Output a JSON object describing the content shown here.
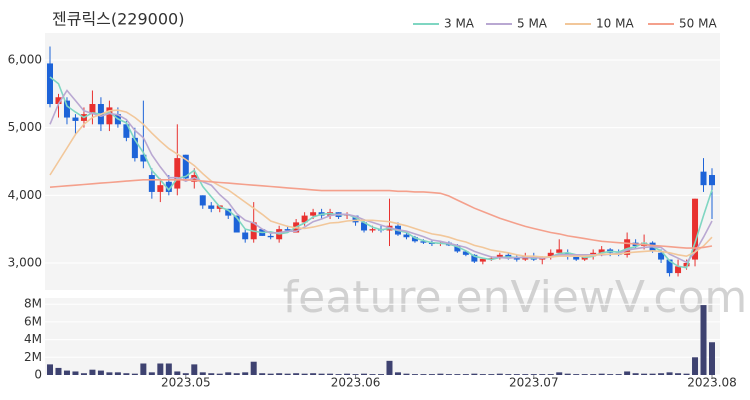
{
  "chart_data": {
    "type": "candlestick",
    "title": "젠큐릭스(229000)",
    "watermark": "feature.enViewV.com",
    "categories": [
      null,
      null,
      null,
      null,
      null,
      null,
      null,
      null,
      null,
      null,
      null,
      null,
      null,
      null,
      null,
      null,
      "2023.05",
      null,
      null,
      null,
      null,
      null,
      null,
      null,
      null,
      null,
      null,
      null,
      null,
      null,
      null,
      null,
      null,
      null,
      null,
      null,
      "2023.06",
      null,
      null,
      null,
      null,
      null,
      null,
      null,
      null,
      null,
      null,
      null,
      null,
      null,
      null,
      null,
      null,
      null,
      null,
      null,
      null,
      "2023.07",
      null,
      null,
      null,
      null,
      null,
      null,
      null,
      null,
      null,
      null,
      null,
      null,
      null,
      null,
      null,
      null,
      null,
      null,
      null,
      null,
      "2023.08"
    ],
    "open": [
      5950,
      5350,
      5400,
      5150,
      5100,
      5200,
      5350,
      5050,
      5200,
      5050,
      4850,
      4600,
      4300,
      4050,
      4200,
      4100,
      4600,
      4200,
      4000,
      3850,
      3800,
      3800,
      3700,
      3450,
      3350,
      3500,
      3400,
      3350,
      3500,
      3450,
      3600,
      3700,
      3750,
      3700,
      3750,
      3700,
      3700,
      3600,
      3480,
      3500,
      3480,
      3550,
      3420,
      3380,
      3320,
      3300,
      3280,
      3300,
      3260,
      3170,
      3120,
      3020,
      3060,
      3070,
      3120,
      3080,
      3050,
      3100,
      3050,
      3080,
      3150,
      3150,
      3100,
      3050,
      3100,
      3150,
      3200,
      3150,
      3120,
      3300,
      3250,
      3300,
      3150,
      3050,
      2850,
      2950,
      3050,
      4350,
      4300
    ],
    "high": [
      6200,
      5500,
      5450,
      5200,
      5300,
      5550,
      5450,
      5400,
      5300,
      5100,
      5000,
      5400,
      4400,
      4250,
      4300,
      5050,
      4600,
      4400,
      4000,
      3900,
      3850,
      3800,
      3700,
      3500,
      3900,
      3500,
      3450,
      3550,
      3550,
      3650,
      3750,
      3800,
      3800,
      3800,
      3750,
      3750,
      3700,
      3650,
      3550,
      3550,
      3950,
      3600,
      3450,
      3400,
      3350,
      3330,
      3330,
      3320,
      3280,
      3180,
      3130,
      3080,
      3100,
      3150,
      3150,
      3120,
      3150,
      3150,
      3100,
      3200,
      3350,
      3200,
      3120,
      3120,
      3200,
      3250,
      3220,
      3200,
      3450,
      3350,
      3420,
      3320,
      3200,
      3050,
      3050,
      3050,
      3950,
      4550,
      4400
    ],
    "low": [
      5300,
      5150,
      5050,
      4900,
      5000,
      5050,
      4950,
      4950,
      5000,
      4800,
      4500,
      4400,
      3950,
      3900,
      4000,
      4000,
      4200,
      4100,
      3800,
      3750,
      3750,
      3650,
      3450,
      3300,
      3300,
      3400,
      3350,
      3300,
      3450,
      3450,
      3550,
      3650,
      3650,
      3650,
      3650,
      3650,
      3550,
      3450,
      3450,
      3450,
      3250,
      3400,
      3350,
      3300,
      3280,
      3250,
      3250,
      3250,
      3150,
      3100,
      3000,
      2980,
      3030,
      3050,
      3050,
      3020,
      3030,
      3030,
      2980,
      3050,
      3100,
      3050,
      3030,
      3030,
      3050,
      3100,
      3100,
      3100,
      3080,
      3200,
      3200,
      3150,
      3000,
      2800,
      2800,
      2900,
      2950,
      4050,
      3650
    ],
    "close": [
      5350,
      5450,
      5150,
      5100,
      5200,
      5350,
      5050,
      5300,
      5050,
      4850,
      4550,
      4500,
      4050,
      4150,
      4050,
      4550,
      4250,
      4300,
      3850,
      3800,
      3850,
      3700,
      3450,
      3350,
      3600,
      3400,
      3380,
      3500,
      3480,
      3600,
      3700,
      3750,
      3700,
      3750,
      3680,
      3720,
      3600,
      3480,
      3500,
      3480,
      3550,
      3420,
      3380,
      3320,
      3300,
      3280,
      3300,
      3260,
      3170,
      3120,
      3020,
      3060,
      3070,
      3120,
      3080,
      3050,
      3100,
      3050,
      3080,
      3150,
      3200,
      3100,
      3050,
      3100,
      3150,
      3200,
      3150,
      3120,
      3350,
      3250,
      3300,
      3180,
      3050,
      2850,
      2950,
      3000,
      3950,
      4150,
      4150
    ],
    "up_color": "#e8312f",
    "down_color": "#1d63d8",
    "series": [
      {
        "name": "3 MA",
        "color": "#7fd6c2",
        "values": [
          5750,
          5650,
          5320,
          5230,
          5150,
          5220,
          5200,
          5230,
          5130,
          5070,
          4820,
          4630,
          4370,
          4230,
          4080,
          4250,
          4280,
          4370,
          4130,
          3980,
          3830,
          3780,
          3670,
          3500,
          3470,
          3450,
          3460,
          3430,
          3450,
          3530,
          3590,
          3680,
          3720,
          3730,
          3710,
          3720,
          3670,
          3600,
          3530,
          3490,
          3510,
          3480,
          3450,
          3370,
          3330,
          3300,
          3290,
          3280,
          3240,
          3180,
          3100,
          3070,
          3050,
          3080,
          3090,
          3080,
          3080,
          3070,
          3080,
          3090,
          3140,
          3150,
          3120,
          3080,
          3100,
          3150,
          3170,
          3160,
          3210,
          3240,
          3300,
          3240,
          3180,
          3030,
          2950,
          2930,
          3300,
          3700,
          4080
        ]
      },
      {
        "name": "5 MA",
        "color": "#b9a8d2",
        "values": [
          5050,
          5350,
          5550,
          5400,
          5250,
          5210,
          5170,
          5210,
          5190,
          5120,
          4960,
          4850,
          4600,
          4420,
          4260,
          4260,
          4210,
          4260,
          4200,
          4150,
          4010,
          3900,
          3730,
          3630,
          3590,
          3500,
          3440,
          3450,
          3470,
          3470,
          3530,
          3610,
          3650,
          3700,
          3720,
          3720,
          3690,
          3640,
          3600,
          3560,
          3520,
          3490,
          3470,
          3430,
          3390,
          3340,
          3320,
          3290,
          3260,
          3230,
          3170,
          3130,
          3090,
          3080,
          3070,
          3080,
          3080,
          3080,
          3070,
          3090,
          3120,
          3120,
          3120,
          3120,
          3120,
          3120,
          3130,
          3140,
          3190,
          3210,
          3230,
          3240,
          3230,
          3130,
          3070,
          3010,
          3160,
          3380,
          3620
        ]
      },
      {
        "name": "10 MA",
        "color": "#f2c79a",
        "values": [
          4300,
          4500,
          4700,
          4900,
          5050,
          5150,
          5200,
          5250,
          5260,
          5230,
          5150,
          5050,
          4920,
          4800,
          4690,
          4610,
          4530,
          4440,
          4320,
          4210,
          4140,
          4080,
          3990,
          3900,
          3810,
          3720,
          3620,
          3580,
          3540,
          3520,
          3510,
          3530,
          3560,
          3590,
          3600,
          3620,
          3630,
          3630,
          3630,
          3620,
          3610,
          3580,
          3550,
          3510,
          3470,
          3430,
          3410,
          3380,
          3340,
          3310,
          3260,
          3230,
          3190,
          3170,
          3150,
          3120,
          3100,
          3100,
          3090,
          3090,
          3100,
          3100,
          3100,
          3100,
          3110,
          3130,
          3130,
          3130,
          3150,
          3160,
          3170,
          3180,
          3170,
          3150,
          3120,
          3100,
          3160,
          3250,
          3380
        ]
      },
      {
        "name": "50 MA",
        "color": "#f4a08c",
        "values": [
          4120,
          4130,
          4140,
          4150,
          4160,
          4170,
          4180,
          4190,
          4200,
          4210,
          4220,
          4230,
          4230,
          4230,
          4230,
          4230,
          4230,
          4220,
          4210,
          4200,
          4190,
          4180,
          4170,
          4160,
          4150,
          4140,
          4130,
          4120,
          4110,
          4100,
          4090,
          4080,
          4070,
          4070,
          4070,
          4070,
          4070,
          4070,
          4070,
          4070,
          4070,
          4060,
          4060,
          4050,
          4050,
          4040,
          4030,
          3990,
          3930,
          3870,
          3810,
          3760,
          3710,
          3660,
          3620,
          3580,
          3540,
          3510,
          3480,
          3450,
          3430,
          3400,
          3380,
          3360,
          3340,
          3320,
          3310,
          3300,
          3290,
          3280,
          3270,
          3260,
          3250,
          3240,
          3230,
          3220,
          3220,
          3230,
          3250
        ]
      }
    ],
    "ylim": [
      2600,
      6400
    ],
    "yticks": [
      {
        "value": 3000,
        "label": "3,000"
      },
      {
        "value": 4000,
        "label": "4,000"
      },
      {
        "value": 5000,
        "label": "5,000"
      },
      {
        "value": 6000,
        "label": "6,000"
      }
    ],
    "grid": true,
    "volume": {
      "color": "#3e4270",
      "values": [
        1200000,
        800000,
        500000,
        400000,
        200000,
        600000,
        500000,
        300000,
        300000,
        200000,
        150000,
        1300000,
        300000,
        1300000,
        1300000,
        400000,
        200000,
        1200000,
        300000,
        200000,
        150000,
        300000,
        200000,
        300000,
        1500000,
        200000,
        150000,
        200000,
        150000,
        200000,
        150000,
        200000,
        150000,
        150000,
        100000,
        150000,
        100000,
        150000,
        100000,
        100000,
        1600000,
        300000,
        150000,
        100000,
        100000,
        100000,
        150000,
        100000,
        100000,
        100000,
        150000,
        100000,
        100000,
        150000,
        100000,
        100000,
        100000,
        100000,
        100000,
        100000,
        300000,
        150000,
        100000,
        100000,
        100000,
        150000,
        100000,
        100000,
        400000,
        200000,
        150000,
        150000,
        200000,
        300000,
        200000,
        150000,
        2000000,
        7900000,
        3700000
      ],
      "ylim": [
        0,
        8700000
      ],
      "yticks": [
        0,
        {
          "value": 2000000,
          "label": "2M"
        },
        {
          "value": 4000000,
          "label": "4M"
        },
        {
          "value": 6000000,
          "label": "6M"
        },
        {
          "value": 8000000,
          "label": "8M"
        }
      ]
    }
  }
}
